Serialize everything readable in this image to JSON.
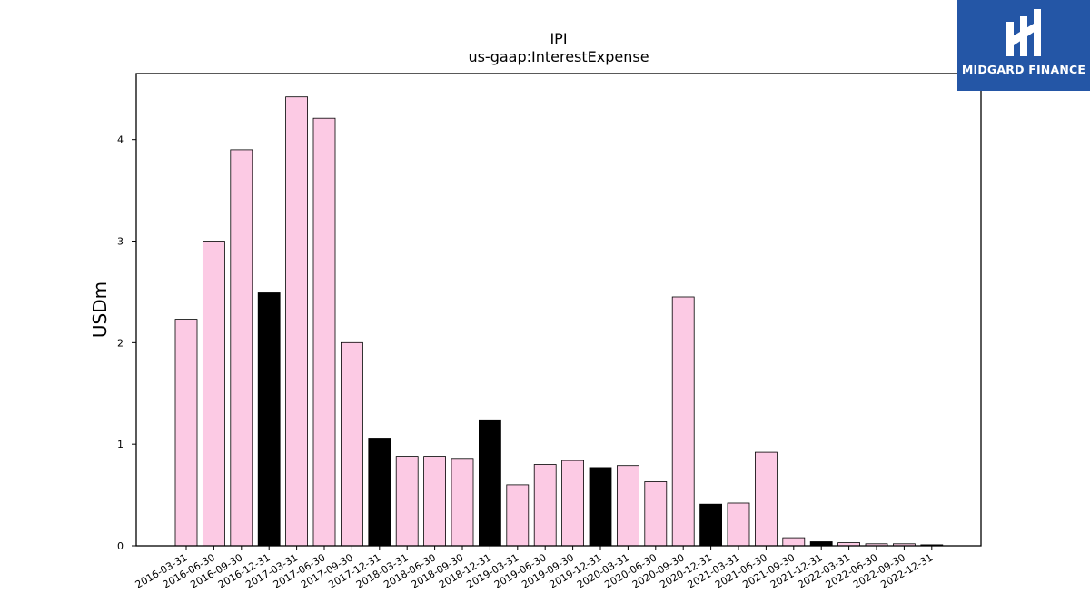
{
  "chart_data": {
    "type": "bar",
    "title": "IPI",
    "subtitle": "us-gaap:InterestExpense",
    "xlabel": "",
    "ylabel": "USDm",
    "ylim": [
      0,
      4.65
    ],
    "yticks": [
      "0",
      "1",
      "2",
      "3",
      "4"
    ],
    "grid": false,
    "categories": [
      "2016-03-31",
      "2016-06-30",
      "2016-09-30",
      "2016-12-31",
      "2017-03-31",
      "2017-06-30",
      "2017-09-30",
      "2017-12-31",
      "2018-03-31",
      "2018-06-30",
      "2018-09-30",
      "2018-12-31",
      "2019-03-31",
      "2019-06-30",
      "2019-09-30",
      "2019-12-31",
      "2020-03-31",
      "2020-06-30",
      "2020-09-30",
      "2020-12-31",
      "2021-03-31",
      "2021-06-30",
      "2021-09-30",
      "2021-12-31",
      "2022-03-31",
      "2022-06-30",
      "2022-09-30",
      "2022-12-31"
    ],
    "values": [
      2.23,
      3.0,
      3.9,
      2.49,
      4.42,
      4.21,
      2.0,
      1.06,
      0.88,
      0.88,
      0.86,
      1.24,
      0.6,
      0.8,
      0.84,
      0.77,
      0.79,
      0.63,
      2.45,
      0.41,
      0.42,
      0.92,
      0.08,
      0.04,
      0.03,
      0.02,
      0.02,
      0.01
    ],
    "highlight": [
      false,
      false,
      false,
      true,
      false,
      false,
      false,
      true,
      false,
      false,
      false,
      true,
      false,
      false,
      false,
      true,
      false,
      false,
      false,
      true,
      false,
      false,
      false,
      true,
      false,
      false,
      false,
      true
    ],
    "colors": {
      "bar": "#fccae4",
      "highlight": "#000000",
      "edge": "#000000"
    }
  },
  "logo": {
    "text": "MIDGARD FINANCE",
    "background": "#2456a6"
  }
}
